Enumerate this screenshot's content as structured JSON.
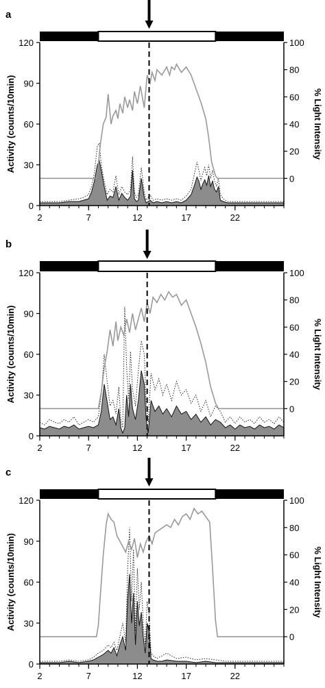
{
  "figure": {
    "colors": {
      "activity_fill": "#8c8c8c",
      "activity_line": "#111111",
      "dotted_line": "#222222",
      "light_line": "#999999",
      "dark_bar": "#000000",
      "light_bar": "#ffffff",
      "axis": "#000000"
    },
    "marker_icon": "down-arrow-icon"
  },
  "chart_data": [
    {
      "panel": "a",
      "type": "area",
      "xlabel": "",
      "ylabel": "Activity (counts/10min)",
      "y2label": "% Light Intensity",
      "xlim": [
        2,
        27
      ],
      "ylim": [
        0,
        120
      ],
      "y2lim": [
        -20,
        100
      ],
      "x_ticks": [
        2,
        7,
        12,
        17,
        22
      ],
      "y_ticks": [
        0,
        30,
        60,
        90,
        120
      ],
      "y2_ticks": [
        0,
        20,
        40,
        60,
        80,
        100
      ],
      "light_period": [
        8.0,
        20.0
      ],
      "marker_x": 13.2,
      "series": [
        {
          "role": "activity_filled",
          "x": [
            2,
            3,
            4,
            5,
            6,
            6.5,
            7,
            7.3,
            7.6,
            7.9,
            8.1,
            8.3,
            8.6,
            8.9,
            9.2,
            9.5,
            9.8,
            10.1,
            10.4,
            10.7,
            11,
            11.3,
            11.5,
            11.7,
            11.9,
            12.1,
            12.4,
            12.7,
            12.9,
            13.1,
            13.3,
            13.6,
            14,
            14.5,
            15,
            15.5,
            16,
            16.5,
            17,
            17.5,
            17.8,
            18.1,
            18.3,
            18.5,
            18.7,
            18.9,
            19.1,
            19.3,
            19.5,
            19.7,
            19.9,
            20.1,
            20.3,
            20.5,
            20.8,
            21.2,
            21.6,
            22,
            23,
            24,
            25,
            26,
            27
          ],
          "values": [
            2,
            2,
            2,
            3,
            3,
            4,
            5,
            10,
            18,
            30,
            33,
            26,
            14,
            4,
            7,
            6,
            14,
            4,
            9,
            6,
            4,
            7,
            26,
            5,
            3,
            4,
            20,
            6,
            2,
            3,
            4,
            2,
            3,
            2,
            3,
            2,
            3,
            2,
            4,
            8,
            14,
            21,
            18,
            12,
            16,
            19,
            15,
            22,
            14,
            18,
            12,
            10,
            14,
            4,
            3,
            2,
            2,
            2,
            2,
            2,
            2,
            2,
            2
          ]
        },
        {
          "role": "activity_dotted",
          "x": [
            2,
            3,
            4,
            5,
            6,
            6.5,
            7,
            7.3,
            7.6,
            7.9,
            8.1,
            8.3,
            8.6,
            8.9,
            9.2,
            9.5,
            9.8,
            10.1,
            10.4,
            10.7,
            11,
            11.3,
            11.5,
            11.7,
            11.9,
            12.1,
            12.4,
            12.7,
            12.9,
            13.1,
            13.3,
            13.6,
            14,
            14.5,
            15,
            15.5,
            16,
            16.5,
            17,
            17.5,
            17.8,
            18.1,
            18.3,
            18.5,
            18.7,
            18.9,
            19.1,
            19.3,
            19.5,
            19.7,
            19.9,
            20.1,
            20.3,
            20.5,
            20.8,
            21.2,
            21.6,
            22,
            23,
            24,
            25,
            26,
            27
          ],
          "values": [
            3,
            3,
            3,
            4,
            5,
            6,
            8,
            14,
            24,
            44,
            46,
            30,
            18,
            8,
            12,
            10,
            22,
            8,
            14,
            10,
            8,
            12,
            36,
            10,
            6,
            8,
            28,
            10,
            4,
            6,
            8,
            4,
            5,
            4,
            5,
            4,
            5,
            4,
            7,
            12,
            22,
            32,
            26,
            18,
            24,
            28,
            22,
            30,
            20,
            26,
            18,
            14,
            20,
            8,
            5,
            3,
            3,
            3,
            3,
            3,
            3,
            3,
            3
          ]
        },
        {
          "role": "light_intensity",
          "x": [
            2,
            7.8,
            8.0,
            8.2,
            8.5,
            8.8,
            9.0,
            9.3,
            9.5,
            9.8,
            10.0,
            10.2,
            10.5,
            10.7,
            11.0,
            11.2,
            11.5,
            11.7,
            12.0,
            12.3,
            12.5,
            12.7,
            13.0,
            13.3,
            13.5,
            13.8,
            14.0,
            14.5,
            15.0,
            15.3,
            15.5,
            15.8,
            16.0,
            16.5,
            17.0,
            17.5,
            18.0,
            18.5,
            19.0,
            19.3,
            19.6,
            20.0,
            20.2,
            27
          ],
          "values": [
            0,
            0,
            10,
            25,
            40,
            45,
            62,
            40,
            46,
            50,
            44,
            55,
            48,
            60,
            52,
            58,
            50,
            64,
            55,
            68,
            60,
            52,
            76,
            70,
            78,
            72,
            80,
            76,
            82,
            76,
            82,
            80,
            84,
            78,
            82,
            76,
            66,
            56,
            44,
            30,
            12,
            2,
            0,
            0
          ]
        }
      ]
    },
    {
      "panel": "b",
      "type": "area",
      "xlabel": "",
      "ylabel": "Activity (counts/10min)",
      "y2label": "% Light Intensity",
      "xlim": [
        2,
        27
      ],
      "ylim": [
        0,
        120
      ],
      "y2lim": [
        -20,
        100
      ],
      "x_ticks": [
        2,
        7,
        12,
        17,
        22
      ],
      "y_ticks": [
        0,
        30,
        60,
        90,
        120
      ],
      "y2_ticks": [
        0,
        20,
        40,
        60,
        80,
        100
      ],
      "light_period": [
        8.0,
        20.0
      ],
      "marker_x": 13.0,
      "series": [
        {
          "role": "activity_filled",
          "x": [
            2,
            2.5,
            3,
            3.5,
            4,
            4.5,
            5,
            5.5,
            6,
            6.5,
            7,
            7.5,
            8,
            8.3,
            8.6,
            8.9,
            9.2,
            9.5,
            9.8,
            10.1,
            10.3,
            10.5,
            10.7,
            10.9,
            11.1,
            11.3,
            11.5,
            11.8,
            12.1,
            12.4,
            12.7,
            12.9,
            13.1,
            13.4,
            13.8,
            14.2,
            14.6,
            15,
            15.5,
            16,
            16.5,
            17,
            17.5,
            18,
            18.5,
            19,
            19.5,
            20,
            20.5,
            21,
            21.5,
            22,
            22.5,
            23,
            23.5,
            24,
            24.5,
            25,
            25.5,
            26,
            26.5,
            27
          ],
          "values": [
            6,
            5,
            7,
            6,
            5,
            7,
            6,
            8,
            5,
            6,
            7,
            6,
            8,
            18,
            38,
            25,
            12,
            14,
            8,
            20,
            6,
            2,
            6,
            30,
            14,
            38,
            20,
            12,
            26,
            48,
            38,
            12,
            2,
            26,
            18,
            22,
            16,
            20,
            14,
            22,
            16,
            18,
            12,
            16,
            10,
            14,
            8,
            12,
            10,
            6,
            8,
            5,
            8,
            6,
            7,
            5,
            8,
            6,
            7,
            5,
            8,
            6
          ]
        },
        {
          "role": "activity_dotted",
          "x": [
            2,
            2.5,
            3,
            3.5,
            4,
            4.5,
            5,
            5.5,
            6,
            6.5,
            7,
            7.5,
            8,
            8.3,
            8.6,
            8.9,
            9.2,
            9.5,
            9.8,
            10.1,
            10.3,
            10.5,
            10.7,
            10.9,
            11.1,
            11.3,
            11.5,
            11.8,
            12.1,
            12.4,
            12.7,
            12.9,
            13.1,
            13.4,
            13.8,
            14.2,
            14.6,
            15,
            15.5,
            16,
            16.5,
            17,
            17.5,
            18,
            18.5,
            19,
            19.5,
            20,
            20.5,
            21,
            21.5,
            22,
            22.5,
            23,
            23.5,
            24,
            24.5,
            25,
            25.5,
            26,
            26.5,
            27
          ],
          "values": [
            10,
            8,
            12,
            10,
            9,
            12,
            10,
            14,
            8,
            10,
            12,
            10,
            14,
            30,
            60,
            40,
            22,
            26,
            16,
            36,
            12,
            6,
            95,
            50,
            26,
            62,
            34,
            22,
            48,
            70,
            60,
            24,
            10,
            46,
            34,
            42,
            30,
            38,
            26,
            40,
            30,
            34,
            24,
            30,
            18,
            26,
            14,
            22,
            18,
            10,
            14,
            9,
            14,
            10,
            12,
            9,
            14,
            10,
            12,
            9,
            14,
            10
          ]
        },
        {
          "role": "light_intensity",
          "x": [
            2,
            8.0,
            8.3,
            8.6,
            8.9,
            9.2,
            9.5,
            9.8,
            10.0,
            10.3,
            10.6,
            10.9,
            11.2,
            11.5,
            11.8,
            12.1,
            12.4,
            12.7,
            13.0,
            13.3,
            13.6,
            14.0,
            14.4,
            14.8,
            15.2,
            15.6,
            16.0,
            16.5,
            17.0,
            17.5,
            18.0,
            18.5,
            19.0,
            19.5,
            20.0,
            20.3,
            27
          ],
          "values": [
            0,
            0,
            12,
            30,
            42,
            58,
            46,
            64,
            50,
            60,
            54,
            66,
            56,
            70,
            58,
            66,
            74,
            64,
            78,
            70,
            82,
            78,
            84,
            80,
            86,
            82,
            84,
            76,
            80,
            70,
            60,
            48,
            34,
            16,
            4,
            0,
            0
          ]
        }
      ]
    },
    {
      "panel": "c",
      "type": "area",
      "xlabel": "",
      "ylabel": "Activity (counts/10min)",
      "y2label": "% Light Intensity",
      "xlim": [
        2,
        27
      ],
      "ylim": [
        0,
        120
      ],
      "y2lim": [
        -20,
        100
      ],
      "x_ticks": [
        2,
        7,
        12,
        17,
        22
      ],
      "y_ticks": [
        0,
        30,
        60,
        90,
        120
      ],
      "y2_ticks": [
        0,
        20,
        40,
        60,
        80,
        100
      ],
      "light_period": [
        8.0,
        20.0
      ],
      "marker_x": 13.2,
      "series": [
        {
          "role": "activity_filled",
          "x": [
            2,
            3,
            4,
            5,
            6,
            7,
            7.5,
            8,
            8.5,
            9,
            9.3,
            9.6,
            9.9,
            10.2,
            10.5,
            10.8,
            11.0,
            11.2,
            11.4,
            11.6,
            11.8,
            12.0,
            12.2,
            12.4,
            12.6,
            12.8,
            13.0,
            13.2,
            13.4,
            13.6,
            14,
            14.5,
            15,
            16,
            17,
            18,
            19,
            20,
            21,
            22,
            23,
            24,
            25,
            26,
            27
          ],
          "values": [
            1,
            1,
            1,
            2,
            1,
            2,
            3,
            5,
            7,
            10,
            8,
            12,
            6,
            14,
            20,
            10,
            48,
            66,
            30,
            52,
            14,
            46,
            28,
            38,
            20,
            8,
            30,
            24,
            4,
            3,
            2,
            2,
            3,
            2,
            2,
            1,
            2,
            1,
            1,
            1,
            1,
            1,
            1,
            1,
            1
          ]
        },
        {
          "role": "activity_dotted",
          "x": [
            2,
            3,
            4,
            5,
            6,
            7,
            7.5,
            8,
            8.5,
            9,
            9.3,
            9.6,
            9.9,
            10.2,
            10.5,
            10.8,
            11.0,
            11.2,
            11.4,
            11.6,
            11.8,
            12.0,
            12.2,
            12.4,
            12.6,
            12.8,
            13.0,
            13.2,
            13.4,
            13.6,
            14,
            14.5,
            15,
            16,
            17,
            18,
            19,
            20,
            21,
            22,
            23,
            24,
            25,
            26,
            27
          ],
          "values": [
            2,
            2,
            2,
            3,
            2,
            3,
            5,
            8,
            10,
            14,
            12,
            16,
            10,
            20,
            30,
            16,
            70,
            100,
            46,
            84,
            24,
            70,
            40,
            60,
            30,
            14,
            46,
            36,
            8,
            6,
            4,
            6,
            8,
            4,
            5,
            3,
            4,
            3,
            2,
            2,
            2,
            2,
            2,
            2,
            2
          ]
        },
        {
          "role": "light_intensity",
          "x": [
            2,
            7.8,
            8.0,
            8.2,
            8.5,
            8.8,
            9.0,
            9.3,
            9.6,
            9.9,
            10.2,
            10.5,
            10.8,
            11.1,
            11.4,
            11.7,
            12.0,
            12.3,
            12.6,
            12.9,
            13.2,
            13.5,
            13.8,
            14.2,
            14.6,
            15.0,
            15.4,
            15.8,
            16.2,
            16.6,
            17.0,
            17.4,
            17.8,
            18.2,
            18.6,
            19.0,
            19.4,
            19.7,
            20.0,
            20.2,
            27
          ],
          "values": [
            0,
            0,
            8,
            30,
            60,
            82,
            90,
            86,
            84,
            74,
            70,
            66,
            62,
            70,
            64,
            72,
            58,
            68,
            62,
            70,
            74,
            68,
            76,
            78,
            80,
            82,
            80,
            86,
            82,
            88,
            90,
            86,
            94,
            90,
            92,
            88,
            84,
            50,
            12,
            0,
            0
          ]
        }
      ]
    }
  ]
}
